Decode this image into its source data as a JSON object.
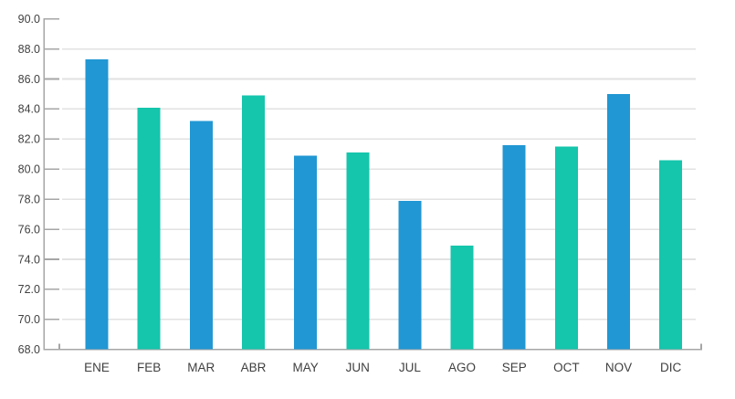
{
  "chart_data": {
    "type": "bar",
    "title": "",
    "xlabel": "",
    "ylabel": "",
    "categories": [
      "ENE",
      "FEB",
      "MAR",
      "ABR",
      "MAY",
      "JUN",
      "JUL",
      "AGO",
      "SEP",
      "OCT",
      "NOV",
      "DIC"
    ],
    "values": [
      87.3,
      84.1,
      83.2,
      84.9,
      80.9,
      81.1,
      77.9,
      74.9,
      81.6,
      81.5,
      85.0,
      80.6
    ],
    "bar_colors_pattern": [
      "#2197d3",
      "#15c5ac"
    ],
    "ylim": [
      68.0,
      90.0
    ],
    "ytick_step": 2.0,
    "ytick_labels": [
      "90.0",
      "88.0",
      "86.0",
      "84.0",
      "82.0",
      "80.0",
      "78.0",
      "76.0",
      "74.0",
      "72.0",
      "70.0",
      "68.0"
    ],
    "grid": true,
    "legend": "none"
  },
  "style": {
    "background": "#ffffff",
    "grid_color": "#e2e2e2",
    "axis_color": "#a6a6a6",
    "label_color": "#404040"
  }
}
